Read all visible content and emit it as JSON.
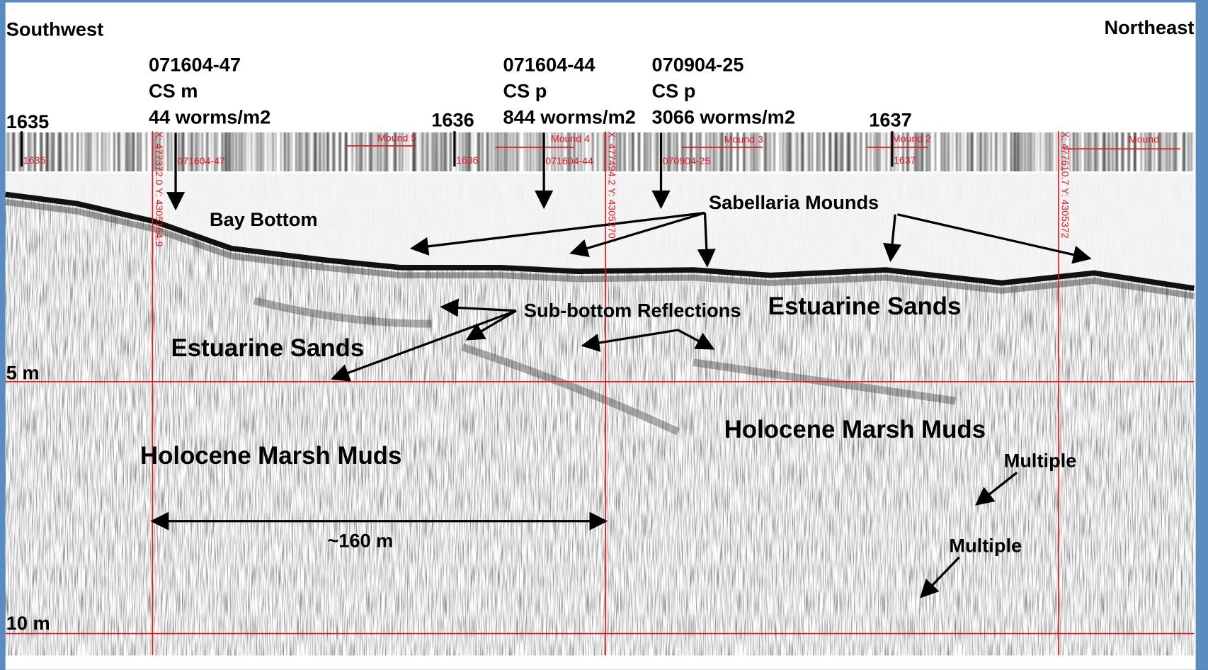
{
  "directions": {
    "left": "Southwest",
    "right": "Northeast"
  },
  "stations": [
    {
      "label": "1635",
      "marker": "1635"
    },
    {
      "label": "1636",
      "marker": "1636"
    },
    {
      "label": "1637",
      "marker": "1637"
    }
  ],
  "samples": [
    {
      "id": "071604-47",
      "type": "CS m",
      "density": "44 worms/m2",
      "marker": "071604-47"
    },
    {
      "id": "071604-44",
      "type": "CS p",
      "density": "844 worms/m2",
      "marker": "071604-44"
    },
    {
      "id": "070904-25",
      "type": "CS p",
      "density": "3066 worms/m2",
      "marker": "070904-25"
    }
  ],
  "mounds": [
    "Mound 5",
    "Mound 4",
    "Mound 3",
    "Mound 2",
    "Mound"
  ],
  "coordinates": [
    "X: 477372.0 Y: 4305164.9",
    "X: 477494.2 Y: 4305270",
    "X: 477610.7 Y: 4305372"
  ],
  "annotations": {
    "bay_bottom": "Bay Bottom",
    "sabellaria": "Sabellaria Mounds",
    "sub_bottom": "Sub-bottom Reflections",
    "sands_left": "Estuarine Sands",
    "sands_right": "Estuarine Sands",
    "muds_left": "Holocene Marsh Muds",
    "muds_right": "Holocene Marsh Muds",
    "multiple_1": "Multiple",
    "multiple_2": "Multiple"
  },
  "depth_labels": [
    "5 m",
    "10 m"
  ],
  "scale": "~160 m"
}
